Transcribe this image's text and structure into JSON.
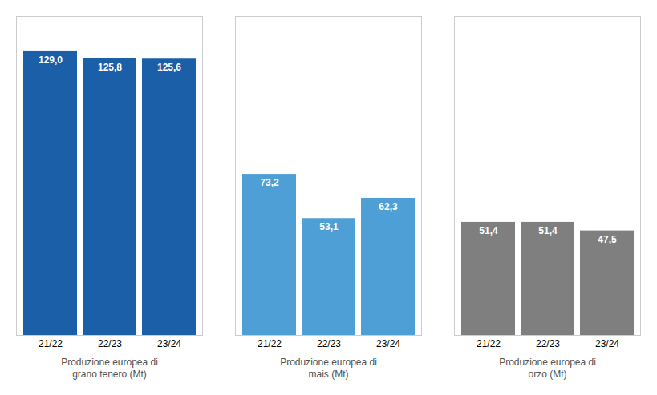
{
  "chart_data": {
    "type": "bar",
    "categories": [
      "21/22",
      "22/23",
      "23/24"
    ],
    "series": [
      {
        "name": "Produzione europea di\ngrano tenero (Mt)",
        "color": "#1a5fa8",
        "values": [
          129.0,
          125.8,
          125.6
        ],
        "value_labels": [
          "129,0",
          "125,8",
          "125,6"
        ]
      },
      {
        "name": "Produzione europea di\nmais (Mt)",
        "color": "#4d9fd6",
        "values": [
          73.2,
          53.1,
          62.3
        ],
        "value_labels": [
          "73,2",
          "53,1",
          "62,3"
        ]
      },
      {
        "name": "Produzione europea di\norzo (Mt)",
        "color": "#7f7f7f",
        "values": [
          51.4,
          51.4,
          47.5
        ],
        "value_labels": [
          "51,4",
          "51,4",
          "47,5"
        ]
      }
    ],
    "ylim": [
      0,
      145
    ],
    "data_labels": true,
    "tick_labels": "x",
    "grid": false
  }
}
